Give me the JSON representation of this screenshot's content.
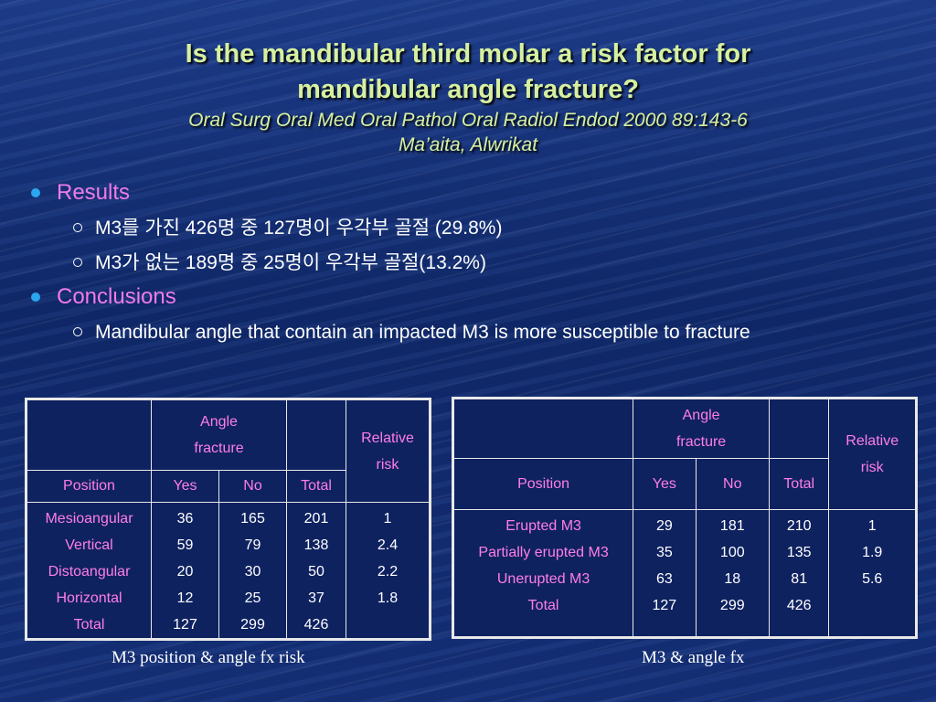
{
  "title": {
    "line1": "Is the mandibular third molar a risk factor for",
    "line2": "mandibular angle fracture?",
    "citation": "Oral Surg Oral Med Oral Pathol Oral Radiol Endod 2000 89:143-6",
    "authors": "Ma’aita, Alwrikat"
  },
  "bullets": {
    "results": "Results",
    "results_items": [
      "M3를 가진 426명 중 127명이 우각부 골절 (29.8%)",
      "M3가 없는 189명 중 25명이 우각부 골절(13.2%)"
    ],
    "conclusions": "Conclusions",
    "conclusions_items": [
      "Mandibular angle that contain an impacted M3 is more susceptible to fracture"
    ]
  },
  "colors": {
    "title": "#d6f0a0",
    "heading": "#f07be8",
    "table_label": "#ff7ee6",
    "bullet_dot": "#2aa6f0"
  },
  "table1": {
    "header_group": [
      "Angle",
      "fracture"
    ],
    "header_risk": [
      "Relative",
      "risk"
    ],
    "columns": {
      "position": "Position",
      "yes": "Yes",
      "no": "No",
      "total": "Total"
    },
    "positions": [
      "Mesioangular",
      "Vertical",
      "Distoangular",
      "Horizontal",
      "Total"
    ],
    "yes": [
      "36",
      "59",
      "20",
      "12",
      "127"
    ],
    "no": [
      "165",
      "79",
      "30",
      "25",
      "299"
    ],
    "total": [
      "201",
      "138",
      "50",
      "37",
      "426"
    ],
    "risk": [
      "1",
      "2.4",
      "2.2",
      "1.8"
    ],
    "caption": "M3 position & angle fx risk"
  },
  "table2": {
    "header_group": [
      "Angle",
      "fracture"
    ],
    "header_risk": [
      "Relative",
      "risk"
    ],
    "columns": {
      "position": "Position",
      "yes": "Yes",
      "no": "No",
      "total": "Total"
    },
    "positions": [
      "Erupted M3",
      "Partially erupted M3",
      "Unerupted M3",
      "Total"
    ],
    "yes": [
      "29",
      "35",
      "63",
      "127"
    ],
    "no": [
      "181",
      "100",
      "18",
      "299"
    ],
    "total": [
      "210",
      "135",
      "81",
      "426"
    ],
    "risk": [
      "1",
      "1.9",
      "5.6"
    ],
    "caption": "M3 & angle fx"
  }
}
